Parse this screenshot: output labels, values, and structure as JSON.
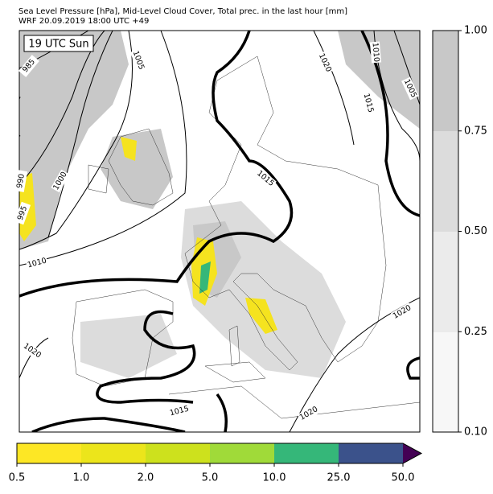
{
  "header": {
    "title": "Sea Level Pressure [hPa], Mid-Level Cloud Cover, Total prec. in the last hour [mm]",
    "subtitle": "WRF 20.09.2019 18:00 UTC +49"
  },
  "map": {
    "time_label": "19 UTC Sun",
    "contour_labels": [
      "985",
      "1005",
      "1020",
      "1010",
      "1005",
      "1015",
      "1015",
      "990",
      "995",
      "1000",
      "1010",
      "1020",
      "1015",
      "1020",
      "1020"
    ]
  },
  "cloud_colorbar": {
    "ticks": [
      "1.00",
      "0.75",
      "0.50",
      "0.25",
      "0.10"
    ]
  },
  "precip_colorbar": {
    "ticks": [
      "0.5",
      "1.0",
      "2.0",
      "5.0",
      "10.0",
      "25.0",
      "50.0"
    ]
  }
}
